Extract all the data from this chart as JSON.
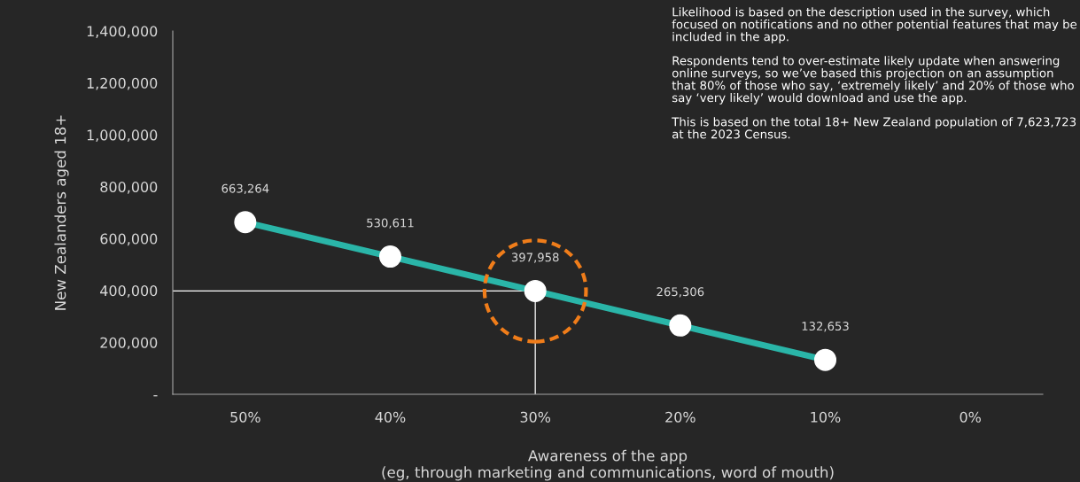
{
  "chart_data": {
    "type": "line",
    "xlabel": "Awareness of the app\n(eg, through marketing and communications, word of mouth)",
    "ylabel": "New Zealanders aged 18+",
    "categories": [
      "50%",
      "40%",
      "30%",
      "20%",
      "10%",
      "0%"
    ],
    "series": [
      {
        "color": "#2ab5a8",
        "values": [
          663264,
          530611,
          397958,
          265306,
          132653,
          null
        ],
        "value_labels": [
          "663,264",
          "530,611",
          "397,958",
          "265,306",
          "132,653",
          null
        ]
      }
    ],
    "ylim": [
      0,
      1400000
    ],
    "yticks": [
      {
        "value": 0,
        "label": "-"
      },
      {
        "value": 200000,
        "label": "200,000"
      },
      {
        "value": 400000,
        "label": "400,000"
      },
      {
        "value": 600000,
        "label": "600,000"
      },
      {
        "value": 800000,
        "label": "800,000"
      },
      {
        "value": 1000000,
        "label": "1,000,000"
      },
      {
        "value": 1200000,
        "label": "1,200,000"
      },
      {
        "value": 1400000,
        "label": "1,400,000"
      }
    ],
    "ref_lines": [
      {
        "axis": "y",
        "value": 397958,
        "color": "#ffffff"
      },
      {
        "axis": "x",
        "value": "30%",
        "color": "#ffffff"
      }
    ],
    "marker": "circle",
    "grid": false,
    "legend": false,
    "annotations": [
      "Likelihood is based on the description used in the survey, which focused on notifications and no other potential features that may be included in the app.",
      "Respondents tend to over-estimate likely update when answering online surveys, so we’ve based this projection on an assumption that 80% of those who say, ‘extremely likely’ and 20% of those who say ‘very likely’ would download and use the app.",
      "This is based on the total 18+ New Zealand population of 7,623,723 at the 2023 Census."
    ]
  }
}
